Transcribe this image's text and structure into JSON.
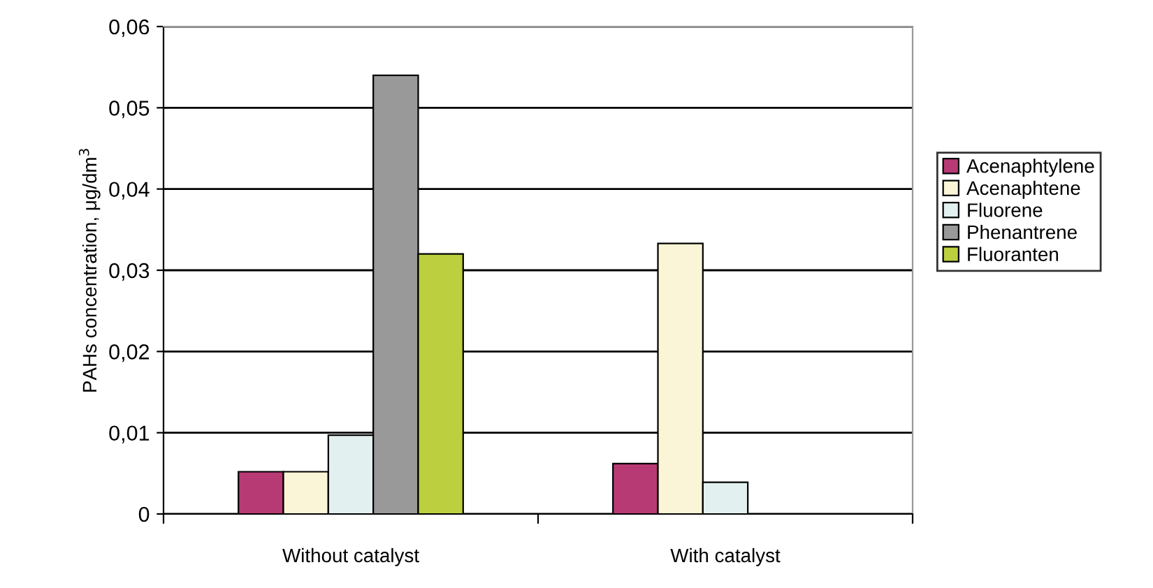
{
  "chart_data": {
    "type": "bar",
    "ylabel": "PAHs concentration, μg/dm$^{3}$",
    "categories": [
      "Without catalyst",
      "With catalyst"
    ],
    "series": [
      {
        "name": "Acenaphtylene",
        "color": "#b83a74",
        "values": [
          0.0052,
          0.0062
        ]
      },
      {
        "name": "Acenaphtene",
        "color": "#fbf5d7",
        "values": [
          0.0052,
          0.0333
        ]
      },
      {
        "name": "Fluorene",
        "color": "#e3f0f0",
        "values": [
          0.0097,
          0.0039
        ]
      },
      {
        "name": "Phenantrene",
        "color": "#999999",
        "values": [
          0.054,
          0
        ]
      },
      {
        "name": "Fluoranten",
        "color": "#bcd03f",
        "values": [
          0.032,
          0
        ]
      }
    ],
    "ylim": [
      0,
      0.06
    ],
    "yticks": [
      {
        "value": 0,
        "label": "0"
      },
      {
        "value": 0.01,
        "label": "0,01"
      },
      {
        "value": 0.02,
        "label": "0,02"
      },
      {
        "value": 0.03,
        "label": "0,03"
      },
      {
        "value": 0.04,
        "label": "0,04"
      },
      {
        "value": 0.05,
        "label": "0,05"
      },
      {
        "value": 0.06,
        "label": "0,06"
      }
    ],
    "grid": "y",
    "legend": "right"
  }
}
